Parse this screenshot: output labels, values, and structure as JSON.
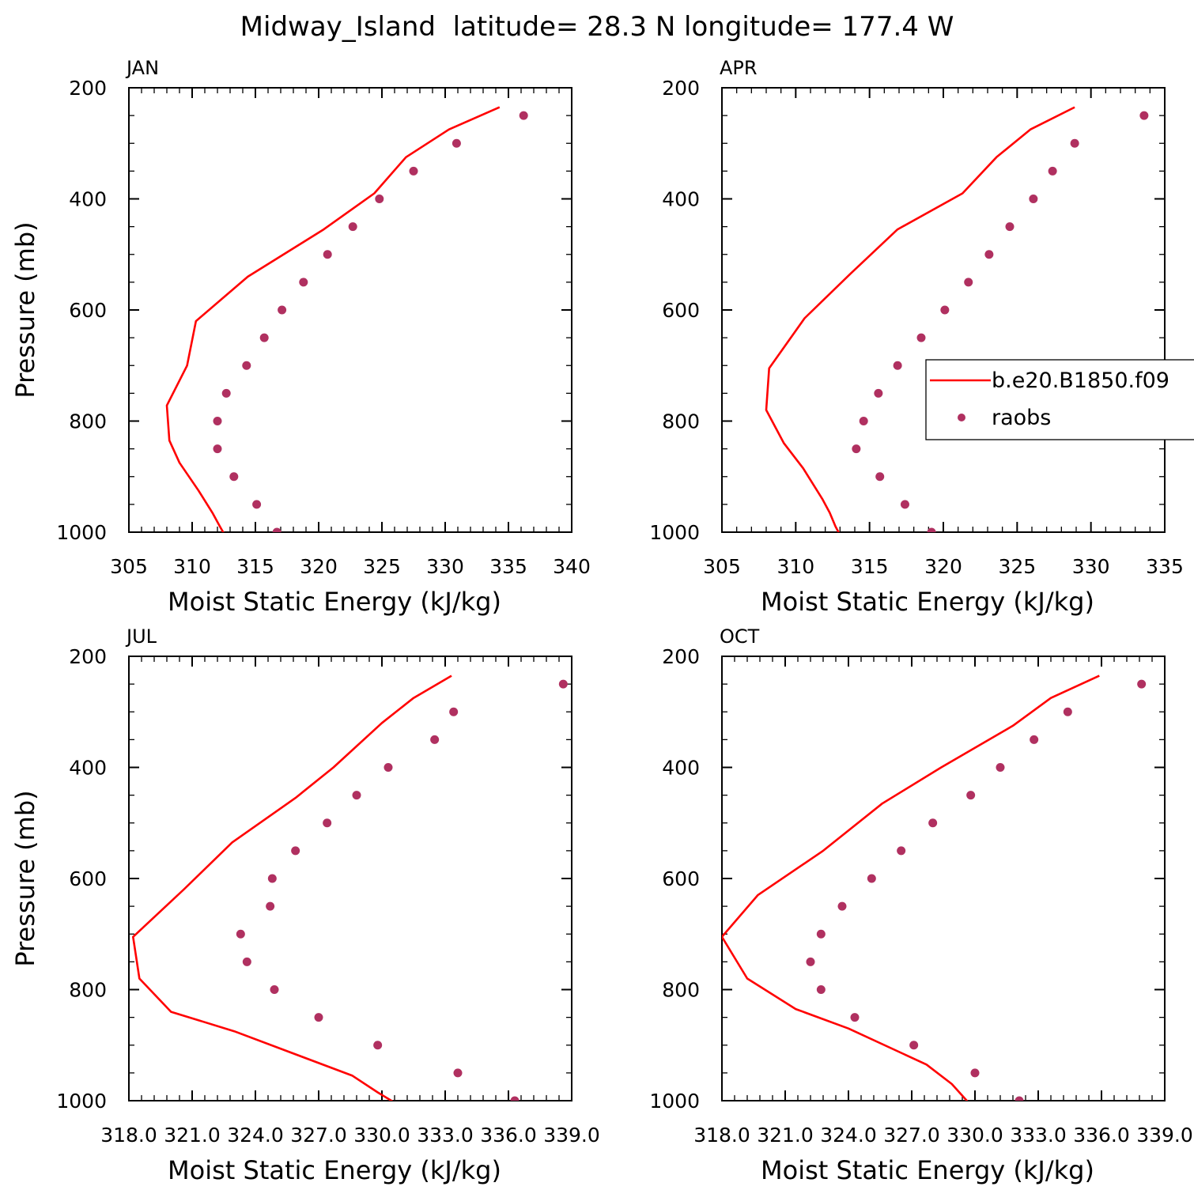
{
  "figure": {
    "title": "Midway_Island  latitude= 28.3 N longitude= 177.4 W"
  },
  "colors": {
    "model_line": "#ff0000",
    "obs_dots": "#b03060",
    "axes": "#000000"
  },
  "legend": {
    "entries": [
      "b.e20.B1850.f09",
      "raobs"
    ]
  },
  "chart_data": [
    {
      "type": "line",
      "month": "JAN",
      "xlabel": "Moist Static Energy (kJ/kg)",
      "ylabel": "Pressure (mb)",
      "xlim": [
        305,
        340
      ],
      "ylim": [
        1000,
        200
      ],
      "xticks": [
        305,
        310,
        315,
        320,
        325,
        330,
        335,
        340
      ],
      "xtick_labels": [
        "305",
        "310",
        "315",
        "320",
        "325",
        "330",
        "335",
        "340"
      ],
      "yticks": [
        200,
        400,
        600,
        800,
        1000
      ],
      "ytick_labels": [
        "200",
        "400",
        "600",
        "800",
        "1000"
      ],
      "series": [
        {
          "name": "b.e20.B1850.f09",
          "style": "line",
          "x": [
            334.3,
            330.3,
            326.9,
            324.4,
            320.4,
            314.4,
            310.3,
            309.6,
            308.0,
            308.2,
            309.0,
            310.5,
            311.6,
            312.2,
            312.7
          ],
          "y": [
            235,
            275,
            325,
            390,
            455,
            540,
            620,
            700,
            772,
            835,
            875,
            925,
            965,
            990,
            1010
          ]
        },
        {
          "name": "raobs",
          "style": "markers",
          "x": [
            336.2,
            330.9,
            327.5,
            324.8,
            322.7,
            320.7,
            318.8,
            317.1,
            315.7,
            314.3,
            312.7,
            312.0,
            312.0,
            313.3,
            315.1,
            316.7
          ],
          "y": [
            250,
            300,
            350,
            400,
            450,
            500,
            550,
            600,
            650,
            700,
            750,
            800,
            850,
            900,
            950,
            1000
          ]
        }
      ]
    },
    {
      "type": "line",
      "month": "APR",
      "xlabel": "Moist Static Energy (kJ/kg)",
      "ylabel": "",
      "xlim": [
        305,
        335
      ],
      "ylim": [
        1000,
        200
      ],
      "xticks": [
        305,
        310,
        315,
        320,
        325,
        330,
        335
      ],
      "xtick_labels": [
        "305",
        "310",
        "315",
        "320",
        "325",
        "330",
        "335"
      ],
      "yticks": [
        200,
        400,
        600,
        800,
        1000
      ],
      "ytick_labels": [
        "200",
        "400",
        "600",
        "800",
        "1000"
      ],
      "legend": "right",
      "series": [
        {
          "name": "b.e20.B1850.f09",
          "style": "line",
          "x": [
            328.9,
            325.9,
            323.6,
            321.3,
            316.9,
            313.7,
            310.6,
            308.2,
            308.0,
            309.2,
            310.5,
            311.8,
            312.3,
            312.7,
            313.1
          ],
          "y": [
            235,
            275,
            325,
            390,
            455,
            535,
            615,
            705,
            780,
            840,
            885,
            940,
            965,
            990,
            1010
          ]
        },
        {
          "name": "raobs",
          "style": "markers",
          "x": [
            333.6,
            328.9,
            327.4,
            326.1,
            324.5,
            323.1,
            321.7,
            320.1,
            318.5,
            316.9,
            315.6,
            314.6,
            314.1,
            315.7,
            317.4,
            319.2
          ],
          "y": [
            250,
            300,
            350,
            400,
            450,
            500,
            550,
            600,
            650,
            700,
            750,
            800,
            850,
            900,
            950,
            1000
          ]
        }
      ]
    },
    {
      "type": "line",
      "month": "JUL",
      "xlabel": "Moist Static Energy (kJ/kg)",
      "ylabel": "Pressure (mb)",
      "xlim": [
        318.0,
        339.0
      ],
      "ylim": [
        1000,
        200
      ],
      "xticks": [
        318.0,
        321.0,
        324.0,
        327.0,
        330.0,
        333.0,
        336.0,
        339.0
      ],
      "xtick_labels": [
        "318.0",
        "321.0",
        "324.0",
        "327.0",
        "330.0",
        "333.0",
        "336.0",
        "339.0"
      ],
      "yticks": [
        200,
        400,
        600,
        800,
        1000
      ],
      "ytick_labels": [
        "200",
        "400",
        "600",
        "800",
        "1000"
      ],
      "series": [
        {
          "name": "b.e20.B1850.f09",
          "style": "line",
          "x": [
            333.3,
            331.5,
            330.0,
            327.7,
            325.9,
            322.9,
            320.6,
            318.2,
            318.5,
            320.0,
            323.0,
            328.6,
            329.8,
            331.1
          ],
          "y": [
            235,
            275,
            320,
            400,
            455,
            535,
            620,
            705,
            780,
            840,
            875,
            955,
            985,
            1015
          ]
        },
        {
          "name": "raobs",
          "style": "markers",
          "x": [
            338.6,
            333.4,
            332.5,
            330.3,
            328.8,
            327.4,
            325.9,
            324.8,
            324.7,
            323.3,
            323.6,
            324.9,
            327.0,
            329.8,
            333.6,
            336.3
          ],
          "y": [
            250,
            300,
            350,
            400,
            450,
            500,
            550,
            600,
            650,
            700,
            750,
            800,
            850,
            900,
            950,
            1000
          ]
        }
      ]
    },
    {
      "type": "line",
      "month": "OCT",
      "xlabel": "Moist Static Energy (kJ/kg)",
      "ylabel": "",
      "xlim": [
        318.0,
        339.0
      ],
      "ylim": [
        1000,
        200
      ],
      "xticks": [
        318.0,
        321.0,
        324.0,
        327.0,
        330.0,
        333.0,
        336.0,
        339.0
      ],
      "xtick_labels": [
        "318.0",
        "321.0",
        "324.0",
        "327.0",
        "330.0",
        "333.0",
        "336.0",
        "339.0"
      ],
      "yticks": [
        200,
        400,
        600,
        800,
        1000
      ],
      "ytick_labels": [
        "200",
        "400",
        "600",
        "800",
        "1000"
      ],
      "series": [
        {
          "name": "b.e20.B1850.f09",
          "style": "line",
          "x": [
            335.9,
            333.6,
            331.8,
            328.4,
            325.6,
            322.8,
            319.7,
            318.0,
            319.2,
            321.5,
            324.0,
            327.7,
            328.9,
            329.9
          ],
          "y": [
            235,
            275,
            325,
            400,
            465,
            550,
            630,
            705,
            780,
            835,
            870,
            935,
            970,
            1012
          ]
        },
        {
          "name": "raobs",
          "style": "markers",
          "x": [
            337.9,
            334.4,
            332.8,
            331.2,
            329.8,
            328.0,
            326.5,
            325.1,
            323.7,
            322.7,
            322.2,
            322.7,
            324.3,
            327.1,
            330.0,
            332.1
          ],
          "y": [
            250,
            300,
            350,
            400,
            450,
            500,
            550,
            600,
            650,
            700,
            750,
            800,
            850,
            900,
            950,
            1000
          ]
        }
      ]
    }
  ]
}
